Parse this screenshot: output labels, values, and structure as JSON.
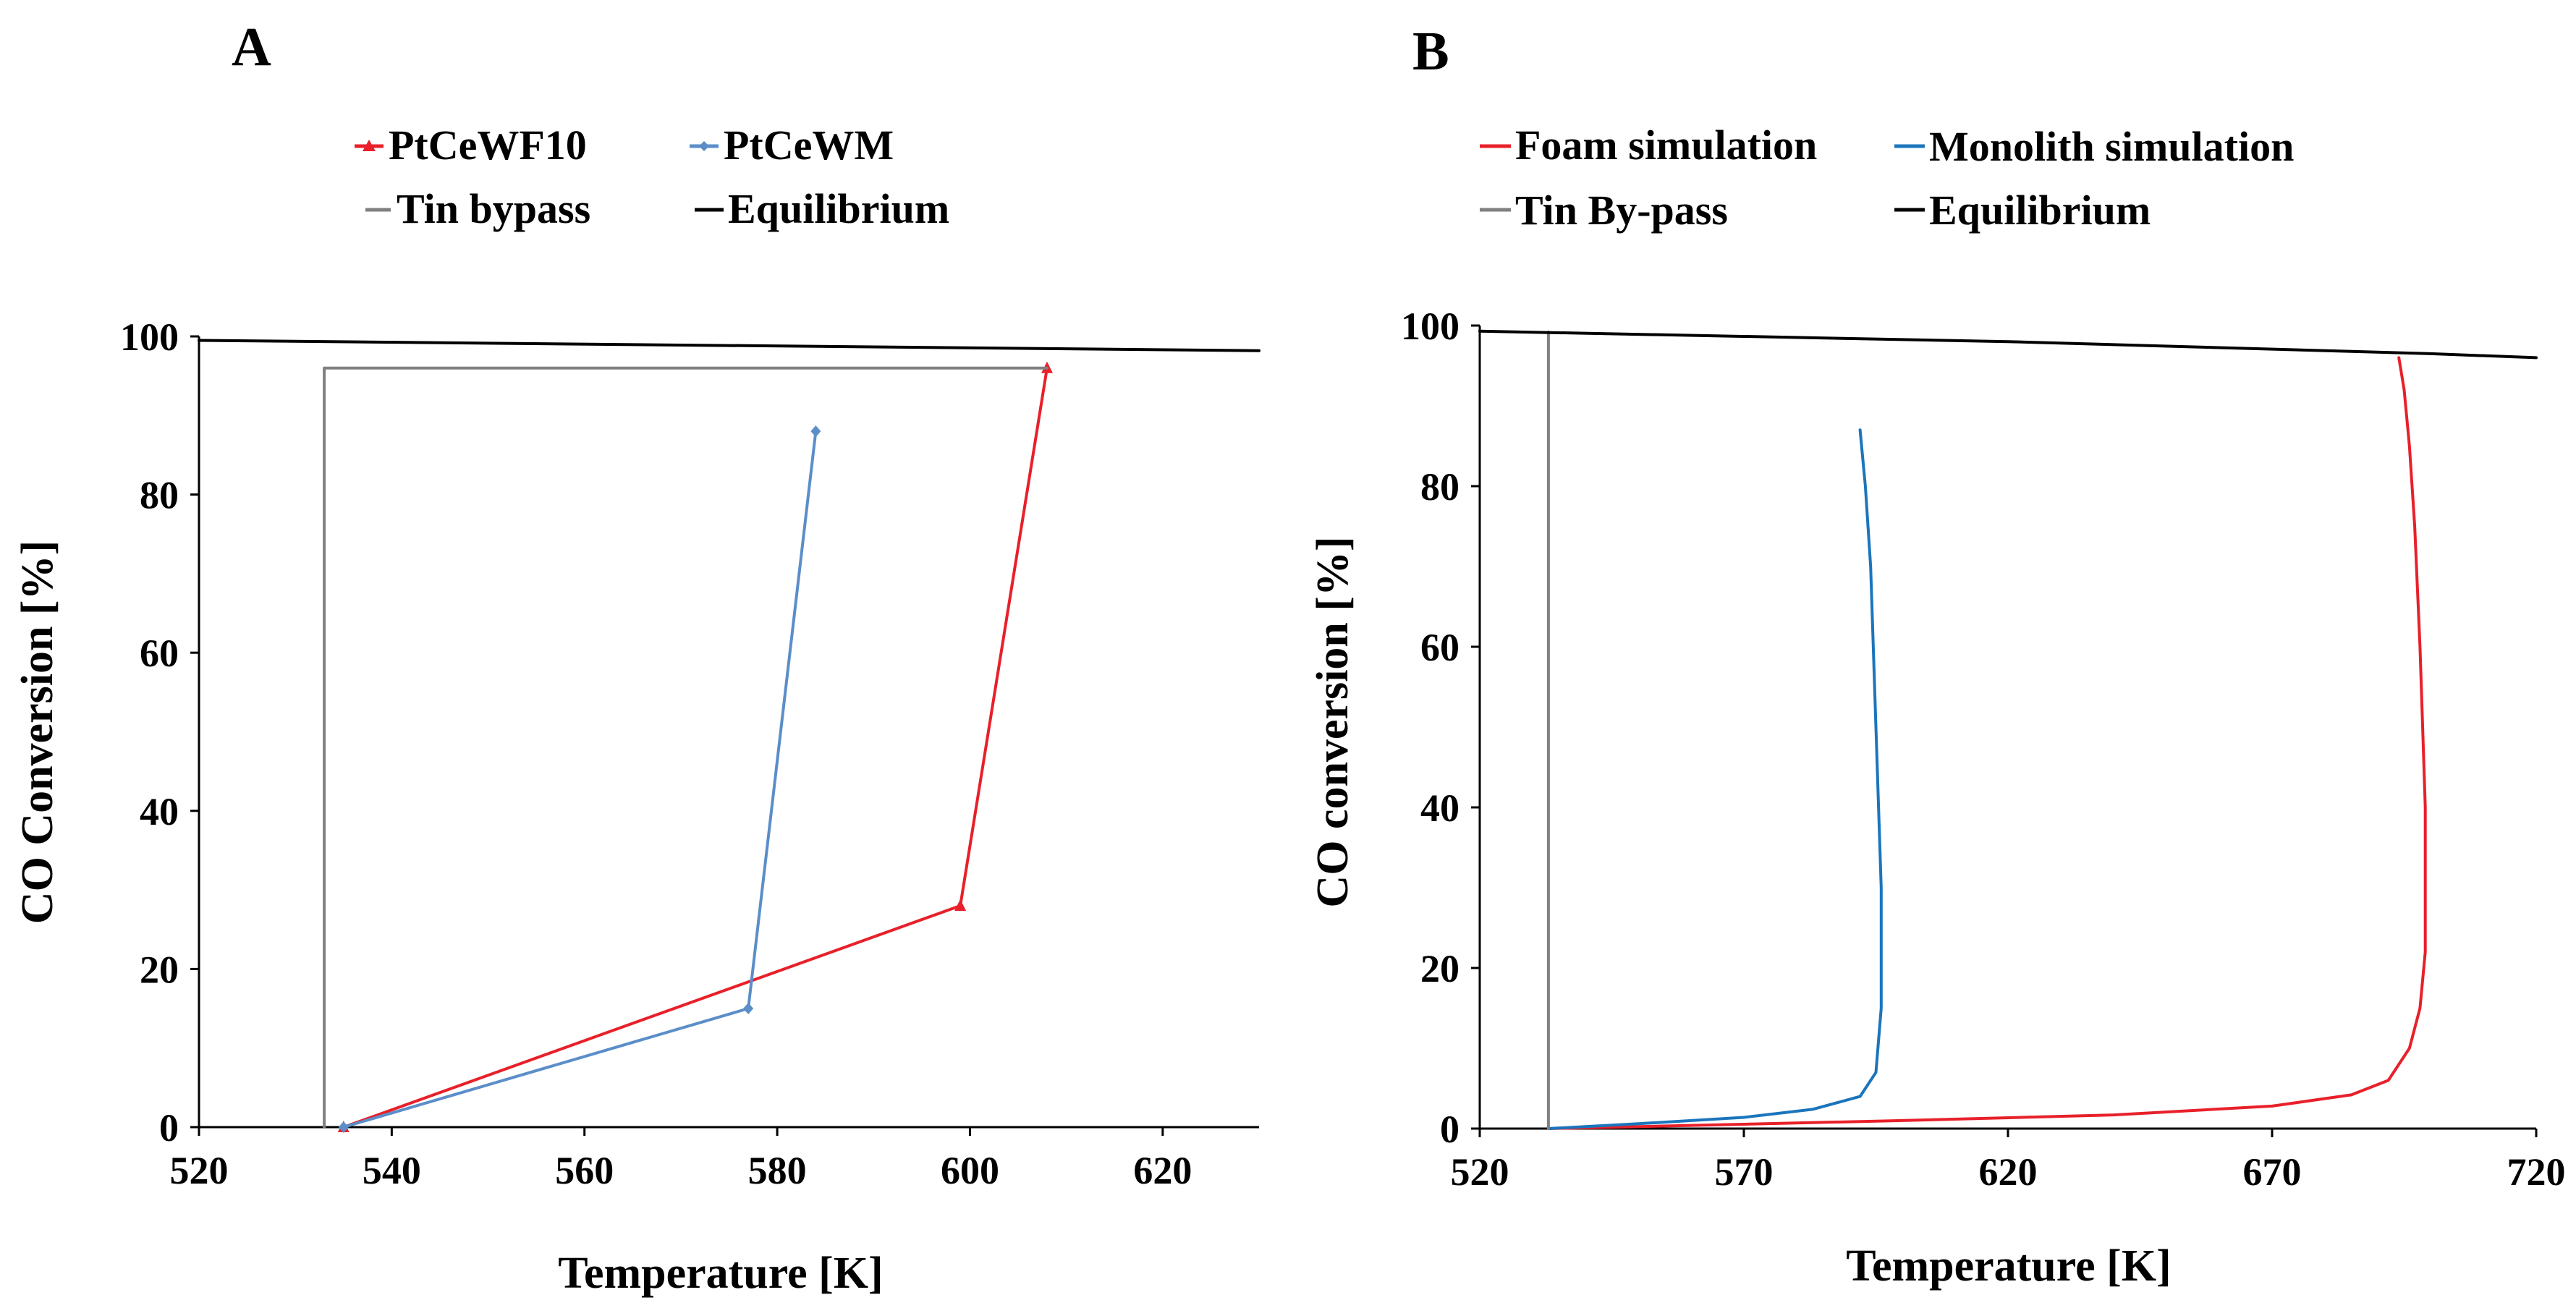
{
  "chart_data": [
    {
      "panel": "A",
      "type": "line",
      "xlabel": "Temperature [K]",
      "ylabel": "CO Conversion [%]",
      "xlim": [
        520,
        630
      ],
      "ylim": [
        0,
        100
      ],
      "xticks": [
        520,
        540,
        560,
        580,
        600,
        620
      ],
      "yticks": [
        0,
        20,
        40,
        60,
        80,
        100
      ],
      "grid": false,
      "legend": [
        "PtCeWF10",
        "PtCeWM",
        "Tin bypass",
        "Equilibrium"
      ],
      "series": [
        {
          "name": "PtCeWF10",
          "color": "#e8202a",
          "marker": "triangle",
          "x": [
            535,
            599,
            608
          ],
          "y": [
            0,
            28,
            96
          ]
        },
        {
          "name": "PtCeWM",
          "color": "#5b8ec9",
          "marker": "diamond",
          "x": [
            535,
            577,
            584
          ],
          "y": [
            0,
            15,
            88
          ]
        },
        {
          "name": "Tin bypass",
          "color": "#808080",
          "marker": "none",
          "x": [
            533,
            533,
            608
          ],
          "y": [
            0,
            96,
            96
          ]
        },
        {
          "name": "Equilibrium",
          "color": "#000000",
          "marker": "none",
          "x": [
            520,
            630
          ],
          "y": [
            99.5,
            98.2
          ]
        }
      ]
    },
    {
      "panel": "B",
      "type": "line",
      "xlabel": "Temperature [K]",
      "ylabel": "CO conversion [%]",
      "xlim": [
        520,
        720
      ],
      "ylim": [
        0,
        100
      ],
      "xticks": [
        520,
        570,
        620,
        670,
        720
      ],
      "yticks": [
        0,
        20,
        40,
        60,
        80,
        100
      ],
      "grid": false,
      "legend": [
        "Foam simulation",
        "Monolith simulation",
        "Tin By-pass",
        "Equilibrium"
      ],
      "series": [
        {
          "name": "Foam simulation",
          "color": "#e8202a",
          "marker": "none",
          "x": [
            533,
            560,
            600,
            640,
            670,
            685,
            692,
            696,
            698,
            699,
            699,
            698,
            697,
            696,
            695,
            694
          ],
          "y": [
            0,
            0.4,
            1.0,
            1.7,
            2.8,
            4.2,
            6,
            10,
            15,
            22,
            40,
            60,
            75,
            85,
            92,
            96
          ]
        },
        {
          "name": "Monolith simulation",
          "color": "#1b75bc",
          "marker": "none",
          "x": [
            533,
            550,
            570,
            583,
            592,
            595,
            596,
            596,
            595,
            594,
            593,
            592
          ],
          "y": [
            0,
            0.6,
            1.4,
            2.4,
            4,
            7,
            15,
            30,
            50,
            70,
            80,
            87
          ]
        },
        {
          "name": "Tin By-pass",
          "color": "#808080",
          "marker": "none",
          "x": [
            533,
            533
          ],
          "y": [
            0,
            99.2
          ]
        },
        {
          "name": "Equilibrium",
          "color": "#000000",
          "marker": "none",
          "x": [
            520,
            620,
            700,
            720
          ],
          "y": [
            99.3,
            98,
            96.5,
            96
          ]
        }
      ]
    }
  ]
}
